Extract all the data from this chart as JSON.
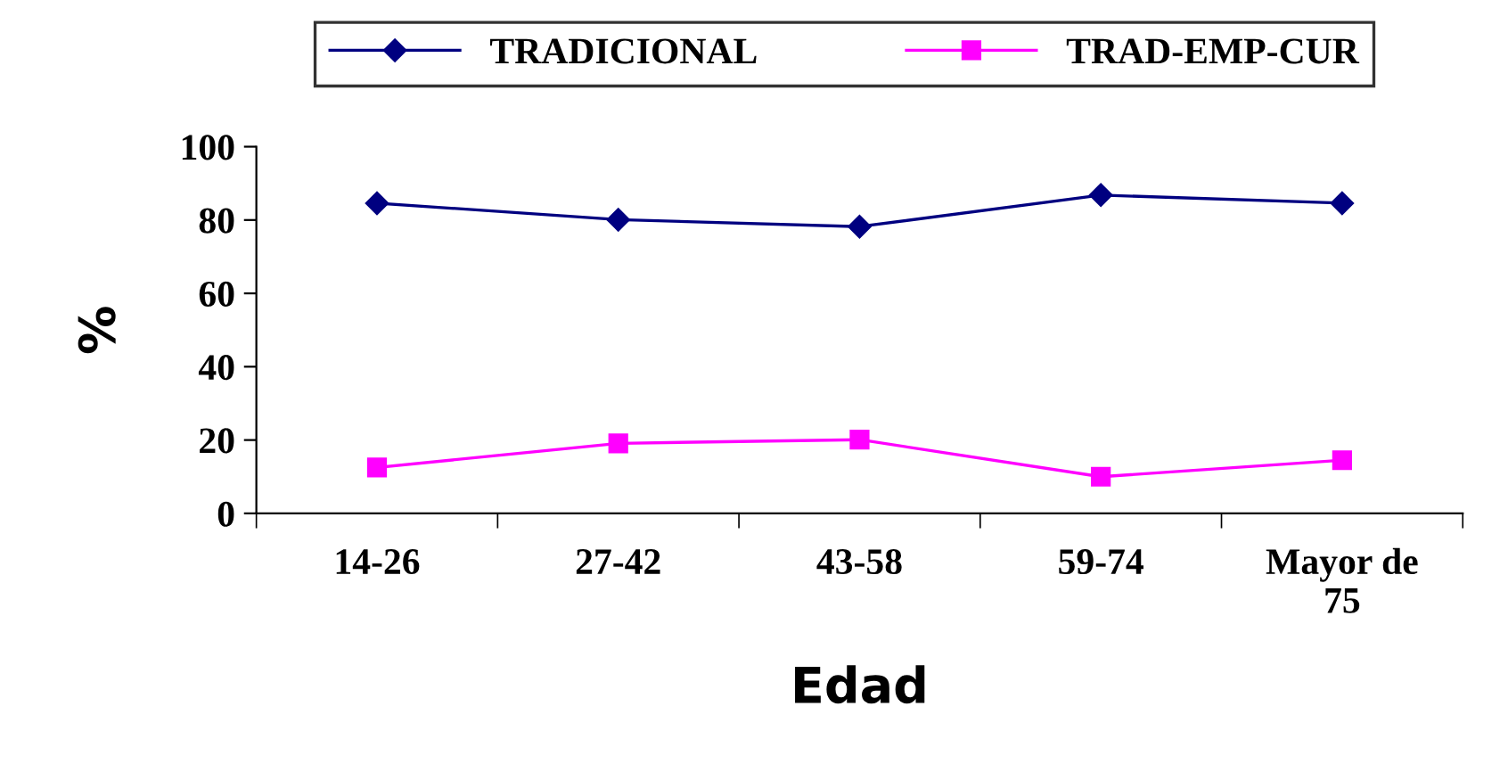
{
  "chart_data": {
    "type": "line",
    "xlabel": "Edad",
    "ylabel": "%",
    "categories": [
      "14-26",
      "27-42",
      "43-58",
      "59-74",
      "Mayor de\n75"
    ],
    "series": [
      {
        "name": "TRADICIONAL",
        "color": "#000080",
        "marker": "diamond",
        "values": [
          84.6,
          80.1,
          78.2,
          86.8,
          84.6
        ]
      },
      {
        "name": "TRAD-EMP-CUR",
        "color": "#ff00ff",
        "marker": "square",
        "values": [
          12.5,
          19.1,
          20.1,
          10,
          14.5
        ]
      }
    ],
    "ylim": [
      0,
      100
    ],
    "yticks": [
      0,
      20,
      40,
      60,
      80,
      100
    ],
    "grid": false,
    "legend": "top"
  }
}
